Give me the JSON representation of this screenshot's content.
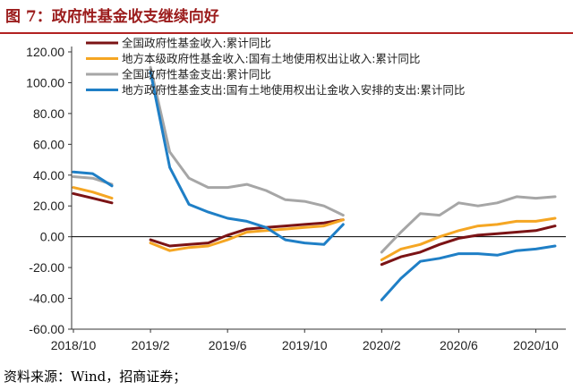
{
  "header": {
    "figure_title": "图 7：政府性基金收支继续向好"
  },
  "footer": {
    "source": "资料来源：Wind，招商证券；"
  },
  "chart_data": {
    "type": "line",
    "title": "图 7：政府性基金收支继续向好",
    "xlabel": "",
    "ylabel": "",
    "ylim": [
      -60,
      120
    ],
    "yticks": [
      -60,
      -40,
      -20,
      0,
      20,
      40,
      60,
      80,
      100,
      120
    ],
    "ytick_labels": [
      "-60.00",
      "-40.00",
      "-20.00",
      "0.00",
      "20.00",
      "40.00",
      "60.00",
      "80.00",
      "100.00",
      "120.00"
    ],
    "x": [
      "2018/10",
      "2018/11",
      "2018/12",
      "2019/1",
      "2019/2",
      "2019/3",
      "2019/4",
      "2019/5",
      "2019/6",
      "2019/7",
      "2019/8",
      "2019/9",
      "2019/10",
      "2019/11",
      "2019/12",
      "2020/1",
      "2020/2",
      "2020/3",
      "2020/4",
      "2020/5",
      "2020/6",
      "2020/7",
      "2020/8",
      "2020/9",
      "2020/10",
      "2020/11"
    ],
    "xtick_labels": [
      "2018/10",
      "2019/2",
      "2019/6",
      "2019/10",
      "2020/2",
      "2020/6",
      "2020/10"
    ],
    "xtick_index": [
      0,
      4,
      8,
      12,
      16,
      20,
      24
    ],
    "legend_position": "top",
    "series": [
      {
        "name": "全国政府性基金收入:累计同比",
        "color": "#7b1315",
        "values": [
          28,
          25,
          22,
          null,
          -2,
          -6,
          -5,
          -4,
          1,
          5,
          6,
          7,
          8,
          9,
          11,
          null,
          -18,
          -13,
          -10,
          -5,
          -1,
          1,
          2,
          3,
          4,
          7
        ]
      },
      {
        "name": "地方本级政府性基金收入:国有土地使用权出让收入:累计同比",
        "color": "#f5a623",
        "values": [
          32,
          29,
          25,
          null,
          -4,
          -9,
          -7,
          -6,
          -2,
          3,
          4,
          5,
          6,
          7,
          11,
          null,
          -15,
          -8,
          -5,
          0,
          4,
          7,
          8,
          10,
          10,
          12
        ]
      },
      {
        "name": "全国政府性基金支出:累计同比",
        "color": "#a6a6a6",
        "values": [
          39,
          38,
          34,
          null,
          110,
          55,
          38,
          32,
          32,
          34,
          30,
          24,
          23,
          20,
          14,
          null,
          -10,
          3,
          15,
          14,
          22,
          20,
          22,
          26,
          25,
          26
        ]
      },
      {
        "name": "地方政府性基金支出:国有土地使用权出让金收入安排的支出:累计同比",
        "color": "#1f7fc6",
        "values": [
          42,
          41,
          33,
          null,
          107,
          45,
          21,
          16,
          12,
          10,
          6,
          -2,
          -4,
          -5,
          8,
          null,
          -41,
          -27,
          -16,
          -14,
          -11,
          -11,
          -12,
          -9,
          -8,
          -6
        ]
      }
    ]
  }
}
